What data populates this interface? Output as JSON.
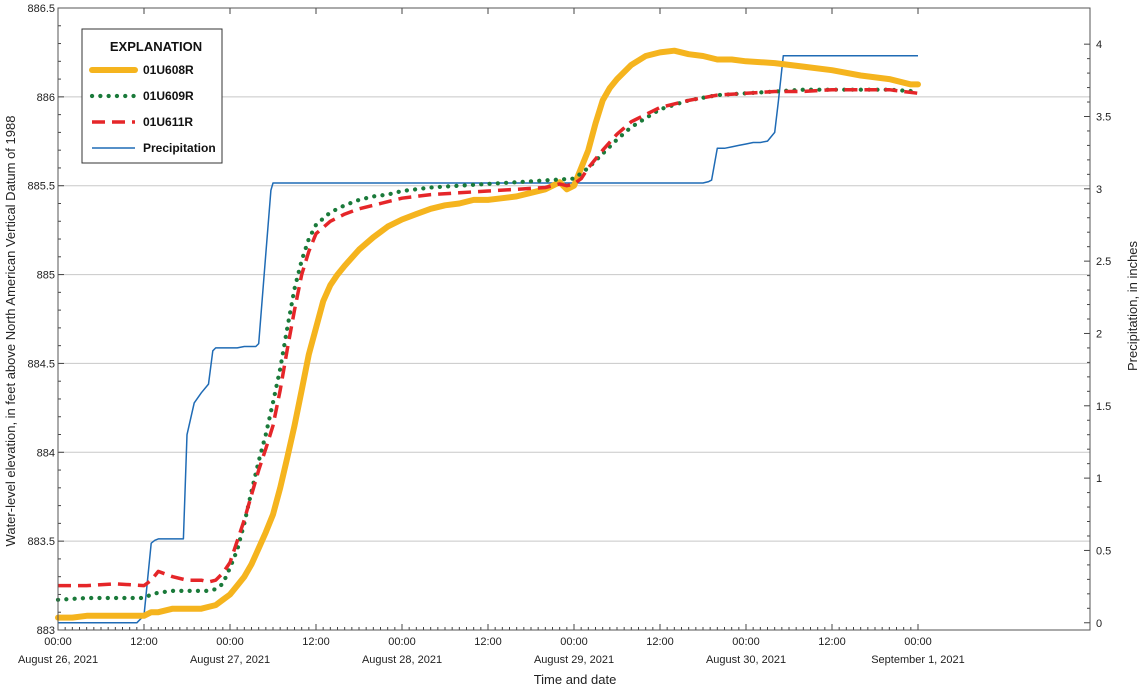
{
  "chart_data": {
    "type": "line",
    "xlabel": "Time and date",
    "ylabel": "Water-level elevation, in feet above North American Vertical Datum of 1988",
    "y2label": "Precipitation, in inches",
    "ylim": [
      883,
      886.5
    ],
    "y2lim": [
      -0.05,
      4.25
    ],
    "xlim": [
      0,
      144
    ],
    "grid": true,
    "legend": {
      "title": "EXPLANATION",
      "position": "top-left"
    },
    "y_ticks": [
      "883",
      "883.5",
      "884",
      "884.5",
      "885",
      "885.5",
      "886",
      "886.5"
    ],
    "y2_ticks": [
      "0",
      "0.5",
      "1",
      "1.5",
      "2",
      "2.5",
      "3",
      "3.5",
      "4"
    ],
    "x_ticks": [
      {
        "hour": 0,
        "time": "00:00",
        "date": "August 26, 2021"
      },
      {
        "hour": 12,
        "time": "12:00",
        "date": ""
      },
      {
        "hour": 24,
        "time": "00:00",
        "date": "August 27, 2021"
      },
      {
        "hour": 36,
        "time": "12:00",
        "date": ""
      },
      {
        "hour": 48,
        "time": "00:00",
        "date": "August 28, 2021"
      },
      {
        "hour": 60,
        "time": "12:00",
        "date": ""
      },
      {
        "hour": 72,
        "time": "00:00",
        "date": "August 29, 2021"
      },
      {
        "hour": 84,
        "time": "12:00",
        "date": ""
      },
      {
        "hour": 96,
        "time": "00:00",
        "date": "August 30, 2021"
      },
      {
        "hour": 108,
        "time": "12:00",
        "date": ""
      },
      {
        "hour": 120,
        "time": "00:00",
        "date": "September 1, 2021"
      }
    ],
    "series": [
      {
        "name": "01U608R",
        "axis": "left",
        "color": "#f5b41e",
        "style": "thick-solid",
        "x": [
          0,
          2,
          4,
          6,
          8,
          10,
          12,
          13,
          14,
          16,
          18,
          20,
          21,
          22,
          23,
          24,
          25,
          26,
          27,
          28,
          29,
          30,
          31,
          32,
          33,
          34,
          35,
          36,
          37,
          38,
          39,
          40,
          42,
          44,
          46,
          48,
          50,
          52,
          54,
          56,
          58,
          60,
          62,
          64,
          66,
          68,
          70,
          71,
          72,
          73,
          74,
          75,
          76,
          77,
          78,
          80,
          82,
          84,
          86,
          88,
          90,
          92,
          94,
          96,
          100,
          104,
          108,
          112,
          116,
          119,
          120
        ],
        "values": [
          883.07,
          883.07,
          883.08,
          883.08,
          883.08,
          883.08,
          883.08,
          883.1,
          883.1,
          883.12,
          883.12,
          883.12,
          883.13,
          883.14,
          883.17,
          883.2,
          883.25,
          883.3,
          883.37,
          883.46,
          883.55,
          883.65,
          883.8,
          883.97,
          884.15,
          884.35,
          884.55,
          884.7,
          884.85,
          884.94,
          885.0,
          885.05,
          885.14,
          885.21,
          885.27,
          885.31,
          885.34,
          885.37,
          885.39,
          885.4,
          885.42,
          885.42,
          885.43,
          885.44,
          885.46,
          885.48,
          885.52,
          885.48,
          885.5,
          885.6,
          885.7,
          885.85,
          885.98,
          886.05,
          886.1,
          886.18,
          886.23,
          886.25,
          886.26,
          886.24,
          886.23,
          886.21,
          886.21,
          886.2,
          886.19,
          886.17,
          886.15,
          886.12,
          886.1,
          886.07,
          886.07
        ]
      },
      {
        "name": "01U609R",
        "axis": "left",
        "color": "#1a7a3a",
        "style": "dotted",
        "x": [
          0,
          4,
          8,
          12,
          13,
          14,
          16,
          18,
          20,
          21,
          22,
          23,
          24,
          25,
          26,
          27,
          28,
          29,
          30,
          31,
          32,
          33,
          34,
          35,
          36,
          38,
          40,
          42,
          44,
          46,
          48,
          52,
          56,
          60,
          64,
          68,
          72,
          74,
          76,
          78,
          80,
          84,
          88,
          92,
          96,
          100,
          104,
          108,
          112,
          116,
          120
        ],
        "values": [
          883.17,
          883.18,
          883.18,
          883.18,
          883.2,
          883.21,
          883.22,
          883.22,
          883.22,
          883.22,
          883.23,
          883.26,
          883.35,
          883.45,
          883.6,
          883.78,
          883.95,
          884.1,
          884.28,
          884.47,
          884.7,
          884.92,
          885.08,
          885.2,
          885.28,
          885.35,
          885.39,
          885.42,
          885.44,
          885.45,
          885.47,
          885.49,
          885.5,
          885.51,
          885.52,
          885.53,
          885.54,
          885.6,
          885.68,
          885.76,
          885.83,
          885.93,
          885.98,
          886.01,
          886.02,
          886.03,
          886.04,
          886.04,
          886.04,
          886.04,
          886.03
        ]
      },
      {
        "name": "01U611R",
        "axis": "left",
        "color": "#e52629",
        "style": "dashed",
        "x": [
          0,
          4,
          8,
          12,
          13,
          14,
          16,
          18,
          20,
          21,
          22,
          23,
          24,
          25,
          26,
          27,
          28,
          29,
          30,
          31,
          32,
          33,
          34,
          35,
          36,
          38,
          40,
          42,
          44,
          46,
          48,
          52,
          56,
          60,
          64,
          68,
          70,
          71,
          72,
          73,
          74,
          76,
          78,
          80,
          84,
          88,
          92,
          96,
          100,
          104,
          108,
          112,
          116,
          120
        ],
        "values": [
          883.25,
          883.25,
          883.26,
          883.25,
          883.28,
          883.33,
          883.3,
          883.28,
          883.28,
          883.27,
          883.28,
          883.32,
          883.38,
          883.5,
          883.62,
          883.76,
          883.9,
          884.02,
          884.15,
          884.35,
          884.58,
          884.8,
          885.0,
          885.13,
          885.23,
          885.3,
          885.34,
          885.37,
          885.39,
          885.41,
          885.43,
          885.45,
          885.46,
          885.47,
          885.48,
          885.49,
          885.51,
          885.5,
          885.51,
          885.54,
          885.6,
          885.7,
          885.79,
          885.86,
          885.94,
          885.98,
          886.01,
          886.02,
          886.03,
          886.03,
          886.04,
          886.04,
          886.04,
          886.02
        ]
      },
      {
        "name": "Precipitation",
        "axis": "right",
        "color": "#1f6bb5",
        "style": "thin-solid",
        "x": [
          0,
          11,
          12,
          13,
          13.5,
          14,
          17.5,
          17.6,
          18,
          19,
          20,
          21,
          21.6,
          22,
          24,
          25,
          26,
          27,
          27.6,
          28,
          29,
          29.7,
          30,
          31.2,
          32,
          90,
          90.8,
          91.2,
          92,
          93,
          94,
          95,
          96,
          97,
          98,
          99,
          100,
          100.5,
          101.2,
          102,
          120
        ],
        "values": [
          0,
          0,
          0.05,
          0.55,
          0.57,
          0.58,
          0.58,
          0.72,
          1.3,
          1.52,
          1.59,
          1.65,
          1.88,
          1.9,
          1.9,
          1.9,
          1.91,
          1.91,
          1.91,
          1.93,
          2.55,
          2.99,
          3.04,
          3.04,
          3.04,
          3.04,
          3.05,
          3.06,
          3.28,
          3.28,
          3.29,
          3.3,
          3.31,
          3.32,
          3.32,
          3.33,
          3.39,
          3.6,
          3.92,
          3.92,
          3.92
        ]
      }
    ]
  }
}
